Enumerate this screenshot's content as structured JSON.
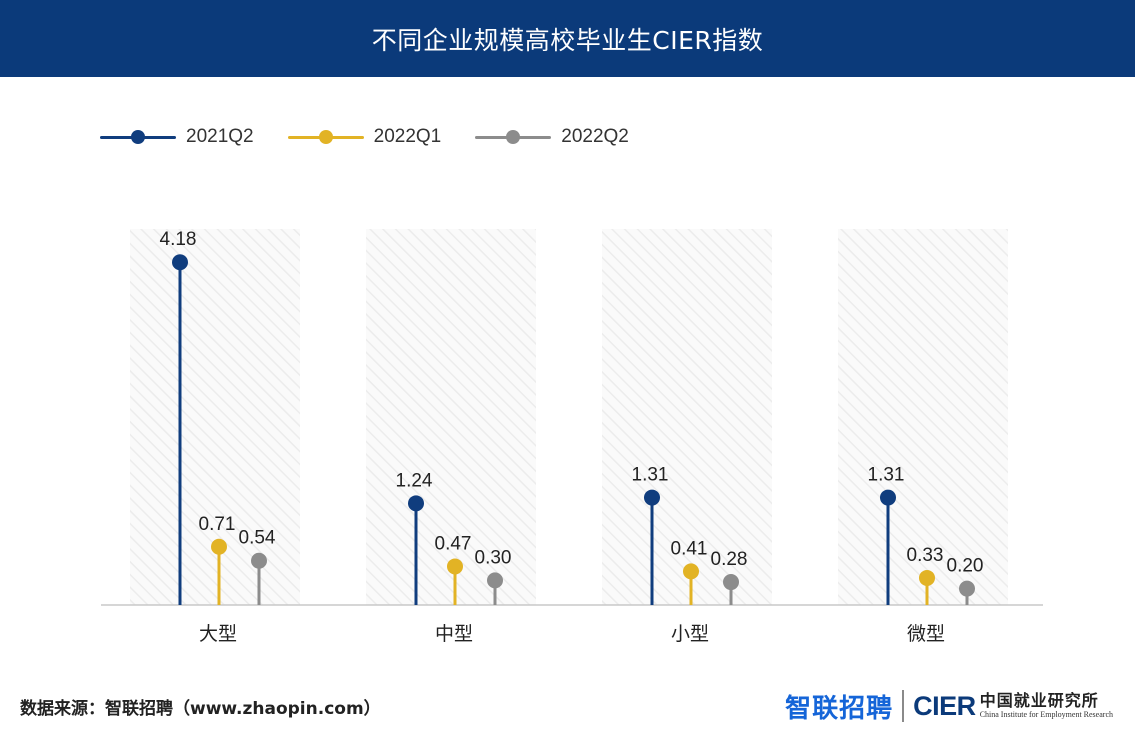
{
  "header": {
    "title": "不同企业规模高校毕业生CIER指数"
  },
  "legend": [
    {
      "label": "2021Q2",
      "color": "#103d7e"
    },
    {
      "label": "2022Q1",
      "color": "#e2b325"
    },
    {
      "label": "2022Q2",
      "color": "#8c8c8c"
    }
  ],
  "chart_data": {
    "type": "lollipop",
    "title": "不同企业规模高校毕业生CIER指数",
    "xlabel": "",
    "ylabel": "",
    "categories": [
      "大型",
      "中型",
      "小型",
      "微型"
    ],
    "series": [
      {
        "name": "2021Q2",
        "color": "#103d7e",
        "values": [
          4.18,
          1.24,
          1.31,
          1.31
        ],
        "labels": [
          "4.18",
          "1.24",
          "1.31",
          "1.31"
        ]
      },
      {
        "name": "2022Q1",
        "color": "#e2b325",
        "values": [
          0.71,
          0.47,
          0.41,
          0.33
        ],
        "labels": [
          "0.71",
          "0.47",
          "0.41",
          "0.33"
        ]
      },
      {
        "name": "2022Q2",
        "color": "#8c8c8c",
        "values": [
          0.54,
          0.3,
          0.28,
          0.2
        ],
        "labels": [
          "0.54",
          "0.30",
          "0.28",
          "0.20"
        ]
      }
    ],
    "ylim": [
      0,
      4.5
    ],
    "grid": false,
    "legend_position": "top-left"
  },
  "footer": {
    "source": "数据来源：智联招聘（www.zhaopin.com）",
    "logo_brand": "智联招聘",
    "logo_cier": "CIER",
    "logo_institute_cn": "中国就业研究所",
    "logo_institute_en": "China Institute for Employment Research"
  }
}
